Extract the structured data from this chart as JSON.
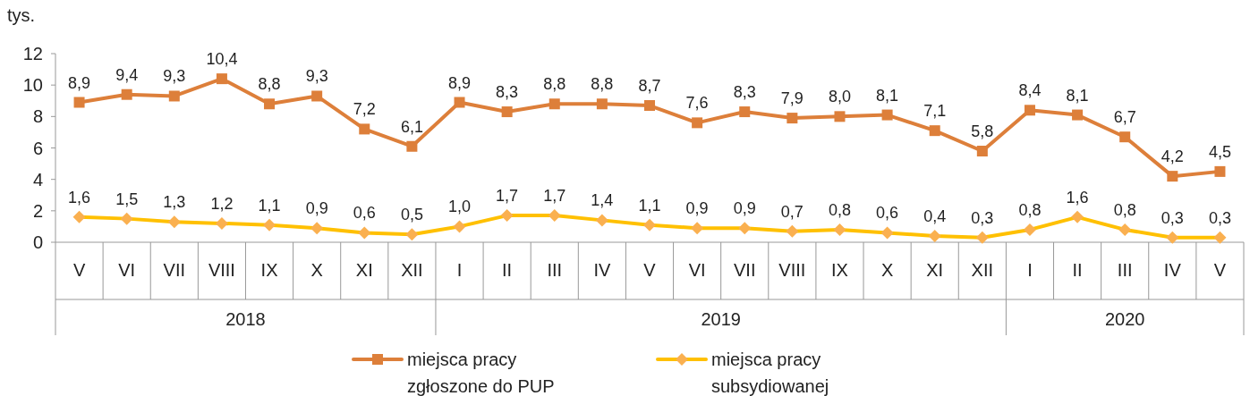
{
  "chart_data": {
    "type": "line",
    "ylabel": "tys.",
    "categories": [
      "V",
      "VI",
      "VII",
      "VIII",
      "IX",
      "X",
      "XI",
      "XII",
      "I",
      "II",
      "III",
      "IV",
      "V",
      "VI",
      "VII",
      "VIII",
      "IX",
      "X",
      "XI",
      "XII",
      "I",
      "II",
      "III",
      "IV",
      "V"
    ],
    "annotations": [
      "2018",
      "2019",
      "2020"
    ],
    "ylim": [
      0,
      12
    ],
    "yticks": [
      0,
      2,
      4,
      6,
      8,
      10,
      12
    ],
    "grid": false,
    "legend": "bottom",
    "series": [
      {
        "name": "miejsca pracy zgłoszone do PUP",
        "color": "#dd7f3a",
        "marker": "square",
        "values": [
          8.9,
          9.4,
          9.3,
          10.4,
          8.8,
          9.3,
          7.2,
          6.1,
          8.9,
          8.3,
          8.8,
          8.8,
          8.7,
          7.6,
          8.3,
          7.9,
          8.0,
          8.1,
          7.1,
          5.8,
          8.4,
          8.1,
          6.7,
          4.2,
          4.5
        ],
        "value_labels": [
          "8,9",
          "9,4",
          "9,3",
          "10,4",
          "8,8",
          "9,3",
          "7,2",
          "6,1",
          "8,9",
          "8,3",
          "8,8",
          "8,8",
          "8,7",
          "7,6",
          "8,3",
          "7,9",
          "8,0",
          "8,1",
          "7,1",
          "5,8",
          "8,4",
          "8,1",
          "6,7",
          "4,2",
          "4,5"
        ]
      },
      {
        "name": "miejsca pracy subsydiowanej",
        "color": "#ffc000",
        "marker": "diamond",
        "values": [
          1.6,
          1.5,
          1.3,
          1.2,
          1.1,
          0.9,
          0.6,
          0.5,
          1.0,
          1.7,
          1.7,
          1.4,
          1.1,
          0.9,
          0.9,
          0.7,
          0.8,
          0.6,
          0.4,
          0.3,
          0.8,
          1.6,
          0.8,
          0.3,
          0.3
        ],
        "value_labels": [
          "1,6",
          "1,5",
          "1,3",
          "1,2",
          "1,1",
          "0,9",
          "0,6",
          "0,5",
          "1,0",
          "1,7",
          "1,7",
          "1,4",
          "1,1",
          "0,9",
          "0,9",
          "0,7",
          "0,8",
          "0,6",
          "0,4",
          "0,3",
          "0,8",
          "1,6",
          "0,8",
          "0,3",
          "0,3"
        ]
      }
    ]
  }
}
